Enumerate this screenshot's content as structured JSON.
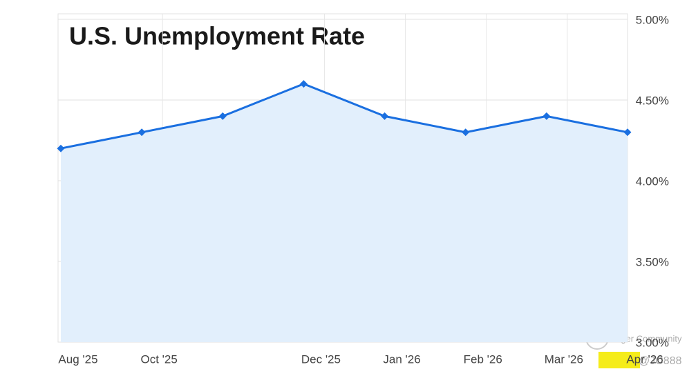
{
  "chart_data": {
    "type": "line",
    "title": "U.S. Unemployment Rate",
    "categories": [
      "Aug '25",
      "Oct '25",
      null,
      "Dec '25",
      "Jan '26",
      "Feb '26",
      "Mar '26",
      "Apr '26"
    ],
    "series": [
      {
        "name": "Unemployment Rate",
        "color": "#1a6fe0",
        "values": [
          4.2,
          4.3,
          4.4,
          4.6,
          4.4,
          4.3,
          4.4,
          4.3
        ]
      }
    ],
    "ylim": [
      3,
      5
    ],
    "yticks": [
      {
        "value": 3,
        "label": "3.00%"
      },
      {
        "value": 3.5,
        "label": "3.50%"
      },
      {
        "value": 4,
        "label": "4.00%"
      },
      {
        "value": 4.5,
        "label": "4.50%"
      },
      {
        "value": 5,
        "label": "5.00%"
      }
    ],
    "grid": true,
    "area": true,
    "annotations": [
      "Tiger Community",
      "@JC888"
    ]
  }
}
